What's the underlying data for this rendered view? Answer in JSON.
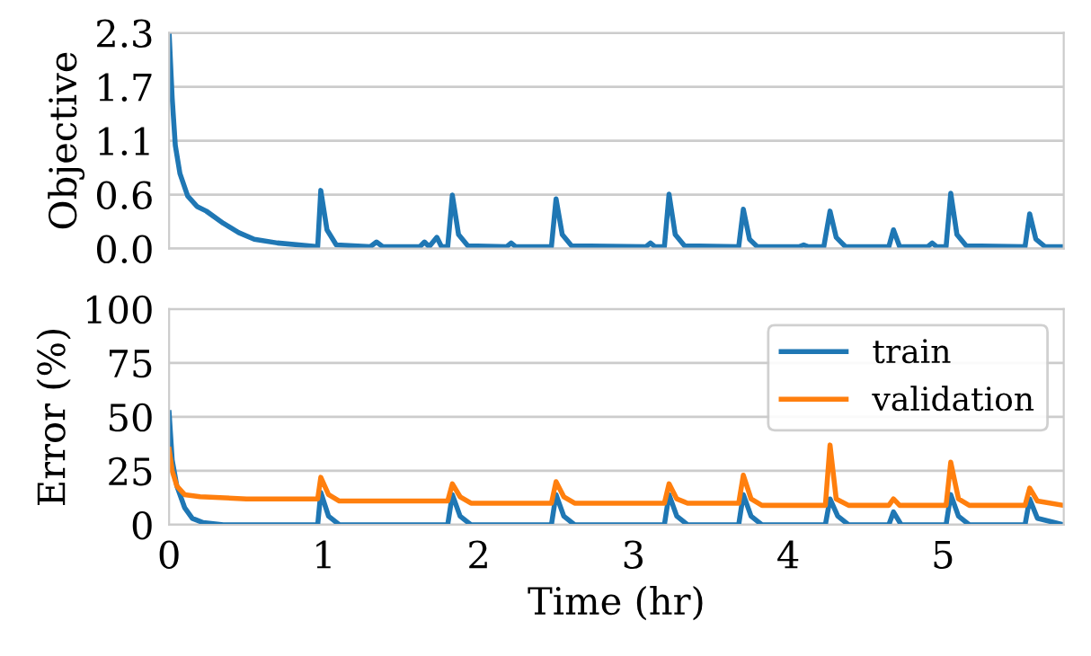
{
  "chart_data": [
    {
      "type": "line",
      "ylabel": "Objective",
      "xlim": [
        0,
        5.78
      ],
      "ylim": [
        0,
        2.3
      ],
      "yticks": [
        {
          "value": 0,
          "label": "0.0"
        },
        {
          "value": 0.575,
          "label": "0.6"
        },
        {
          "value": 1.15,
          "label": "1.1"
        },
        {
          "value": 1.725,
          "label": "1.7"
        },
        2.3
      ],
      "tick_labels": "y",
      "grid": "y",
      "legend": false,
      "series": [
        {
          "color": "#1f77b4",
          "x": [
            0,
            0.02,
            0.04,
            0.07,
            0.12,
            0.18,
            0.24,
            0.35,
            0.45,
            0.55,
            0.7,
            0.9,
            0.96,
            0.98,
            1.02,
            1.08,
            1.3,
            1.34,
            1.38,
            1.62,
            1.65,
            1.68,
            1.73,
            1.76,
            1.8,
            1.83,
            1.87,
            1.93,
            2.18,
            2.21,
            2.24,
            2.47,
            2.5,
            2.54,
            2.6,
            3.08,
            3.11,
            3.14,
            3.2,
            3.23,
            3.27,
            3.33,
            3.68,
            3.71,
            3.75,
            3.8,
            4.07,
            4.1,
            4.13,
            4.23,
            4.27,
            4.31,
            4.37,
            4.65,
            4.68,
            4.72,
            4.9,
            4.93,
            4.96,
            5.02,
            5.05,
            5.09,
            5.15,
            5.53,
            5.56,
            5.6,
            5.66,
            5.78
          ],
          "values": [
            2.3,
            1.6,
            1.1,
            0.8,
            0.56,
            0.45,
            0.4,
            0.27,
            0.17,
            0.1,
            0.06,
            0.03,
            0.02,
            0.62,
            0.2,
            0.04,
            0.02,
            0.07,
            0.02,
            0.02,
            0.07,
            0.02,
            0.12,
            0.02,
            0.02,
            0.57,
            0.15,
            0.03,
            0.02,
            0.06,
            0.02,
            0.02,
            0.53,
            0.15,
            0.03,
            0.02,
            0.06,
            0.02,
            0.02,
            0.58,
            0.15,
            0.03,
            0.02,
            0.42,
            0.1,
            0.02,
            0.02,
            0.04,
            0.02,
            0.02,
            0.4,
            0.12,
            0.02,
            0.02,
            0.2,
            0.02,
            0.02,
            0.06,
            0.02,
            0.02,
            0.59,
            0.15,
            0.03,
            0.02,
            0.37,
            0.1,
            0.02,
            0.02
          ]
        }
      ]
    },
    {
      "type": "line",
      "ylabel": "Error (%)",
      "xlabel": "Time (hr)",
      "xlim": [
        0,
        5.78
      ],
      "ylim": [
        0,
        100
      ],
      "xticks": [
        0,
        1,
        2,
        3,
        4,
        5
      ],
      "yticks": [
        0,
        25,
        50,
        75,
        100
      ],
      "grid": "y",
      "legend": "top right",
      "series": [
        {
          "name": "train",
          "color": "#1f77b4",
          "x": [
            0,
            0.02,
            0.05,
            0.1,
            0.15,
            0.22,
            0.35,
            0.96,
            0.98,
            1.03,
            1.1,
            1.8,
            1.83,
            1.88,
            1.95,
            2.47,
            2.5,
            2.55,
            2.62,
            3.2,
            3.23,
            3.28,
            3.35,
            3.68,
            3.71,
            3.76,
            3.83,
            4.24,
            4.27,
            4.32,
            4.39,
            4.65,
            4.68,
            4.73,
            5.02,
            5.05,
            5.1,
            5.17,
            5.53,
            5.56,
            5.61,
            5.78
          ],
          "values": [
            52,
            30,
            18,
            8,
            3,
            1,
            0,
            0,
            15,
            4,
            0,
            0,
            14,
            4,
            0,
            0,
            14,
            4,
            0,
            0,
            14,
            4,
            0,
            0,
            14,
            4,
            0,
            0,
            12,
            4,
            0,
            0,
            6,
            0,
            0,
            14,
            4,
            0,
            0,
            12,
            3,
            0
          ]
        },
        {
          "name": "validation",
          "color": "#ff7f0e",
          "x": [
            0,
            0.02,
            0.05,
            0.1,
            0.2,
            0.5,
            0.96,
            0.98,
            1.03,
            1.1,
            1.6,
            1.8,
            1.83,
            1.88,
            1.95,
            2.47,
            2.5,
            2.55,
            2.62,
            3.2,
            3.23,
            3.28,
            3.35,
            3.68,
            3.71,
            3.76,
            3.83,
            4.24,
            4.27,
            4.31,
            4.39,
            4.65,
            4.68,
            4.72,
            5.02,
            5.05,
            5.1,
            5.17,
            5.53,
            5.56,
            5.61,
            5.78
          ],
          "values": [
            35,
            25,
            18,
            14,
            13,
            12,
            12,
            22,
            14,
            11,
            11,
            11,
            19,
            13,
            10,
            10,
            20,
            13,
            10,
            10,
            19,
            12,
            10,
            10,
            23,
            12,
            9,
            9,
            37,
            12,
            9,
            9,
            12,
            9,
            9,
            29,
            12,
            9,
            9,
            17,
            11,
            9
          ]
        }
      ]
    }
  ]
}
